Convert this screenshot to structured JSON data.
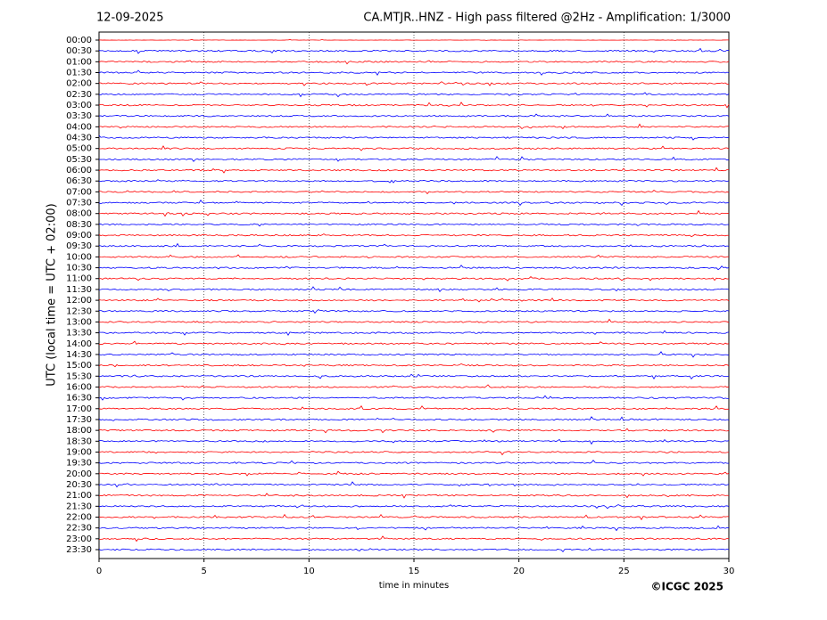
{
  "chart_data": {
    "type": "helicorder",
    "title_left": "12-09-2025",
    "title": "CA.MTJR..HNZ - High pass filtered @2Hz - Amplification: 1/3000",
    "y_label": "UTC (local time = UTC + 02:00)",
    "x_label": "time in minutes",
    "credit": "©ICGC 2025",
    "categories": [
      "00:00",
      "00:30",
      "01:00",
      "01:30",
      "02:00",
      "02:30",
      "03:00",
      "03:30",
      "04:00",
      "04:30",
      "05:00",
      "05:30",
      "06:00",
      "06:30",
      "07:00",
      "07:30",
      "08:00",
      "08:30",
      "09:00",
      "09:30",
      "10:00",
      "10:30",
      "11:00",
      "11:30",
      "12:00",
      "12:30",
      "13:00",
      "13:30",
      "14:00",
      "14:30",
      "15:00",
      "15:30",
      "16:00",
      "16:30",
      "17:00",
      "17:30",
      "18:00",
      "18:30",
      "19:00",
      "19:30",
      "20:00",
      "20:30",
      "21:00",
      "21:30",
      "22:00",
      "22:30",
      "23:00",
      "23:30"
    ],
    "trace_colors": [
      "#ff0000",
      "#0000ff"
    ],
    "xlim": [
      0,
      30
    ],
    "xticks": [
      0,
      5,
      10,
      15,
      20,
      25,
      30
    ],
    "grid": true
  }
}
